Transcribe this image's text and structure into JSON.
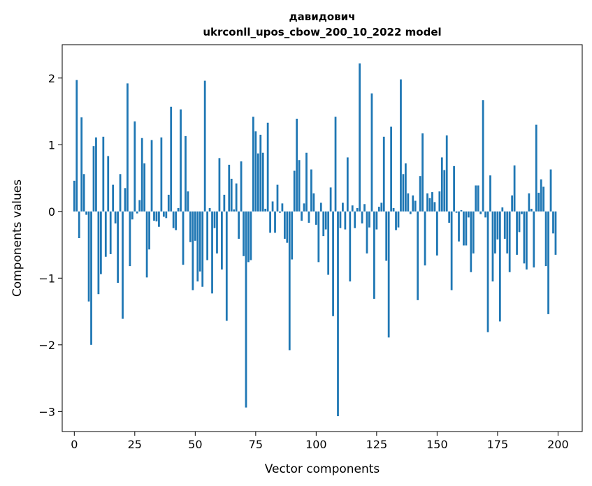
{
  "chart_data": {
    "type": "bar",
    "title": "давидович",
    "subtitle": "ukrconll_upos_cbow_200_10_2022 model",
    "xlabel": "Vector components",
    "ylabel": "Components values",
    "xlim": [
      -5,
      210
    ],
    "ylim": [
      -3.3,
      2.5
    ],
    "xticks": [
      0,
      25,
      50,
      75,
      100,
      125,
      150,
      175,
      200
    ],
    "xtick_labels": [
      "0",
      "25",
      "50",
      "75",
      "100",
      "125",
      "150",
      "175",
      "200"
    ],
    "yticks": [
      -3,
      -2,
      -1,
      0,
      1,
      2
    ],
    "ytick_labels": [
      "−3",
      "−2",
      "−1",
      "0",
      "1",
      "2"
    ],
    "grid": false,
    "bar_color": "#1f77b4",
    "x": [
      0,
      1,
      2,
      3,
      4,
      5,
      6,
      7,
      8,
      9,
      10,
      11,
      12,
      13,
      14,
      15,
      16,
      17,
      18,
      19,
      20,
      21,
      22,
      23,
      24,
      25,
      26,
      27,
      28,
      29,
      30,
      31,
      32,
      33,
      34,
      35,
      36,
      37,
      38,
      39,
      40,
      41,
      42,
      43,
      44,
      45,
      46,
      47,
      48,
      49,
      50,
      51,
      52,
      53,
      54,
      55,
      56,
      57,
      58,
      59,
      60,
      61,
      62,
      63,
      64,
      65,
      66,
      67,
      68,
      69,
      70,
      71,
      72,
      73,
      74,
      75,
      76,
      77,
      78,
      79,
      80,
      81,
      82,
      83,
      84,
      85,
      86,
      87,
      88,
      89,
      90,
      91,
      92,
      93,
      94,
      95,
      96,
      97,
      98,
      99,
      100,
      101,
      102,
      103,
      104,
      105,
      106,
      107,
      108,
      109,
      110,
      111,
      112,
      113,
      114,
      115,
      116,
      117,
      118,
      119,
      120,
      121,
      122,
      123,
      124,
      125,
      126,
      127,
      128,
      129,
      130,
      131,
      132,
      133,
      134,
      135,
      136,
      137,
      138,
      139,
      140,
      141,
      142,
      143,
      144,
      145,
      146,
      147,
      148,
      149,
      150,
      151,
      152,
      153,
      154,
      155,
      156,
      157,
      158,
      159,
      160,
      161,
      162,
      163,
      164,
      165,
      166,
      167,
      168,
      169,
      170,
      171,
      172,
      173,
      174,
      175,
      176,
      177,
      178,
      179,
      180,
      181,
      182,
      183,
      184,
      185,
      186,
      187,
      188,
      189,
      190,
      191,
      192,
      193,
      194,
      195,
      196,
      197,
      198,
      199
    ],
    "values": [
      0.46,
      1.97,
      -0.4,
      1.41,
      0.56,
      -0.05,
      -1.35,
      -2.0,
      0.98,
      1.11,
      -1.24,
      -0.94,
      1.12,
      -0.68,
      0.83,
      -0.64,
      0.4,
      -0.18,
      -1.07,
      0.56,
      -1.61,
      0.35,
      1.92,
      -0.82,
      -0.12,
      1.35,
      -0.03,
      0.17,
      1.1,
      0.72,
      -0.99,
      -0.57,
      1.07,
      -0.14,
      -0.15,
      -0.23,
      1.11,
      -0.08,
      -0.1,
      0.25,
      1.57,
      -0.25,
      -0.28,
      0.05,
      1.53,
      -0.8,
      1.13,
      0.3,
      -0.46,
      -1.18,
      -0.44,
      -1.05,
      -0.9,
      -1.13,
      1.96,
      -0.73,
      0.05,
      -1.23,
      -0.25,
      -0.63,
      0.8,
      -0.87,
      0.25,
      -1.64,
      0.7,
      0.49,
      0.03,
      0.42,
      -0.41,
      0.75,
      -0.67,
      -2.94,
      -0.76,
      -0.73,
      1.42,
      1.2,
      0.87,
      1.15,
      0.88,
      0.04,
      1.33,
      -0.32,
      0.15,
      -0.32,
      0.4,
      -0.02,
      0.12,
      -0.41,
      -0.47,
      -2.08,
      -0.72,
      0.61,
      1.39,
      0.77,
      -0.14,
      0.12,
      0.88,
      -0.17,
      0.63,
      0.27,
      -0.2,
      -0.76,
      0.13,
      -0.37,
      -0.27,
      -0.95,
      0.36,
      -1.57,
      1.42,
      -3.07,
      -0.25,
      0.13,
      -0.27,
      0.81,
      -1.05,
      0.09,
      -0.25,
      0.05,
      2.22,
      -0.18,
      0.11,
      -0.63,
      -0.24,
      1.77,
      -1.31,
      -0.27,
      0.07,
      0.13,
      1.12,
      -0.74,
      -1.89,
      1.27,
      0.05,
      -0.28,
      -0.24,
      1.98,
      0.56,
      0.72,
      0.27,
      -0.04,
      0.24,
      0.16,
      -1.33,
      0.53,
      1.17,
      -0.81,
      0.27,
      0.2,
      0.29,
      0.14,
      -0.66,
      0.3,
      0.81,
      0.62,
      1.14,
      -0.17,
      -1.18,
      0.68,
      -0.02,
      -0.45,
      0.02,
      -0.51,
      -0.51,
      -0.09,
      -0.91,
      -0.63,
      0.39,
      0.39,
      -0.04,
      1.67,
      -0.09,
      -1.81,
      0.54,
      -1.05,
      -0.63,
      -0.42,
      -1.65,
      0.06,
      -0.41,
      -0.63,
      -0.91,
      0.24,
      0.69,
      -0.65,
      -0.31,
      -0.04,
      -0.78,
      -0.87,
      0.27,
      0.04,
      -0.84,
      1.3,
      0.28,
      0.48,
      0.37,
      -0.82,
      -1.54,
      0.63,
      -0.33,
      -0.65
    ]
  }
}
